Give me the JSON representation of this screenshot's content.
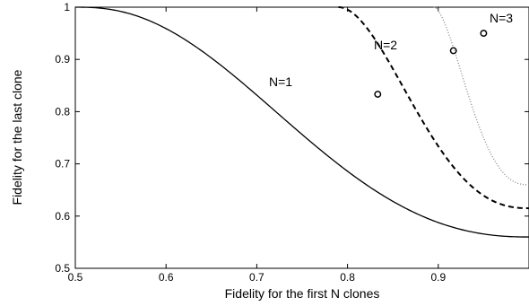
{
  "chart_data": {
    "type": "line",
    "title": "",
    "xlabel": "Fidelity for the first N clones",
    "ylabel": "Fidelity for the last clone",
    "xlim": [
      0.5,
      1.0
    ],
    "ylim": [
      0.5,
      1.0
    ],
    "xticks": [
      0.5,
      0.6,
      0.7,
      0.8,
      0.9
    ],
    "yticks": [
      0.5,
      0.6,
      0.7,
      0.8,
      0.9,
      1
    ],
    "grid": false,
    "legend": "none",
    "series": [
      {
        "name": "N=1",
        "line_style": "solid",
        "color": "#000000",
        "x": [
          0.5,
          0.55,
          0.6,
          0.65,
          0.7,
          0.75,
          0.8,
          0.8333,
          0.85,
          0.9,
          0.95,
          0.975,
          1.0
        ],
        "y": [
          1.0,
          0.994,
          0.977,
          0.949,
          0.909,
          0.854,
          0.783,
          0.8333,
          0.802,
          0.726,
          0.648,
          0.603,
          0.556
        ]
      },
      {
        "name": "N=2",
        "line_style": "dashed",
        "color": "#000000",
        "x": [
          0.8,
          0.82,
          0.84,
          0.86,
          0.88,
          0.9,
          0.9167,
          0.93,
          0.95,
          0.97,
          0.99,
          1.0
        ],
        "y": [
          1.0,
          0.996,
          0.99,
          0.98,
          0.965,
          0.945,
          0.9167,
          0.89,
          0.835,
          0.765,
          0.68,
          0.615
        ]
      },
      {
        "name": "N=3",
        "line_style": "dotted",
        "color": "#888888",
        "x": [
          0.9,
          0.92,
          0.94,
          0.95,
          0.96,
          0.97,
          0.98,
          0.99,
          1.0
        ],
        "y": [
          1.0,
          0.995,
          0.975,
          0.95,
          0.915,
          0.87,
          0.815,
          0.74,
          0.66
        ]
      }
    ],
    "markers": [
      {
        "series": "N=1",
        "x": 0.8333,
        "y": 0.8333
      },
      {
        "series": "N=2",
        "x": 0.9167,
        "y": 0.9167
      },
      {
        "series": "N=3",
        "x": 0.95,
        "y": 0.95
      }
    ]
  }
}
